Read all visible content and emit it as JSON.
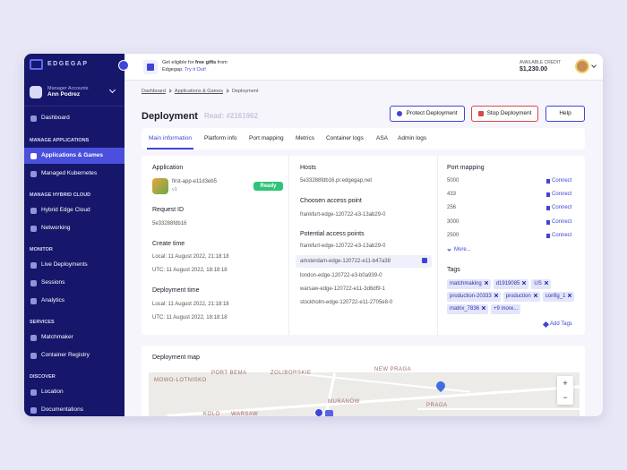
{
  "sidebar": {
    "logo": "EDGEGAP",
    "account": {
      "label": "Manager Accounts",
      "name": "Ann Podrez"
    },
    "top_item": "Dashboard",
    "sections": [
      {
        "title": "MANAGE APPLICATIONS",
        "items": [
          "Applications & Games",
          "Managed Kubernetes"
        ]
      },
      {
        "title": "MANAGE HYBRID CLOUD",
        "items": [
          "Hybrid Edge Cloud",
          "Networking"
        ]
      },
      {
        "title": "MONITOR",
        "items": [
          "Live Deployments",
          "Sessions",
          "Analytics"
        ]
      },
      {
        "title": "SERVICES",
        "items": [
          "Matchmaker",
          "Container Registry"
        ]
      },
      {
        "title": "DISCOVER",
        "items": [
          "Location",
          "Documentations"
        ]
      }
    ]
  },
  "topbar": {
    "promo": [
      "Get eligible for ",
      "free gifts",
      " from",
      "Edgegap. ",
      "Try it Out!"
    ],
    "credit_label": "AVAILABLE CREDIT",
    "credit": "$1,230.00"
  },
  "breadcrumb": [
    "Dashboard",
    "Applications & Games",
    "Deployment"
  ],
  "header": {
    "title": "Deployment",
    "read": "Read: #2161962",
    "buttons": [
      "Protect Deployment",
      "Stop Deployment",
      "Help"
    ]
  },
  "tabs": [
    "Main information",
    "Platform info",
    "Port mapping",
    "Metrics",
    "Container logs",
    "ASA",
    "Admin logs"
  ],
  "application": {
    "title": "Application",
    "name": "first-app-e11d3eb5",
    "version": "v1",
    "status": "Ready",
    "request_label": "Request ID",
    "request_id": "5e33288fdb16",
    "create_label": "Create time",
    "create_local": "Local: 11 August 2022, 21:18:18",
    "create_utc": "UTC: 11 August 2022, 18:18:18",
    "deploy_label": "Deployment time",
    "deploy_local": "Local: 11 August 2022, 21:18:18",
    "deploy_utc": "UTC: 11 August 2022, 18:18:18"
  },
  "hosts": {
    "title": "Hosts",
    "host": "5e33288fdb16.pr.edgegap.net",
    "chosen_label": "Choosen access point",
    "chosen": "frankfurt-edge-120722-e3-13ab29-0",
    "potential_label": "Potential access points",
    "potential": [
      "frankfurt-edge-120722-e3-13ab29-0",
      "amsterdam-edge-120722-e11-b47a38",
      "london-edge-120722-e3-b0a939-0",
      "warsaw-edge-120722-e11-3d6df9-1",
      "stockholm-edge-120722-e11-2705e8-0"
    ]
  },
  "ports": {
    "title": "Port mapping",
    "rows": [
      {
        "port": "5000",
        "action": "Connect"
      },
      {
        "port": "433",
        "action": "Connect"
      },
      {
        "port": "256",
        "action": "Connect"
      },
      {
        "port": "3000",
        "action": "Connect"
      },
      {
        "port": "2500",
        "action": "Connect"
      }
    ],
    "more": "More...",
    "tags_title": "Tags",
    "tags": [
      "matchmaking",
      "d1919085",
      "US",
      "production-20333",
      "production",
      "config_1",
      "matrix_7836"
    ],
    "tags_more": "+9 more...",
    "add_tags": "Add Tags"
  },
  "map": {
    "title": "Deployment map",
    "labels": [
      "PORT BEMA",
      "ZOLIBORSKIE",
      "MOWO-LOTNISKO",
      "MURANÓW",
      "PRAGA",
      "KOLO",
      "WARSAW",
      "NEW PRAGA"
    ],
    "zoom": [
      "+",
      "−"
    ]
  }
}
